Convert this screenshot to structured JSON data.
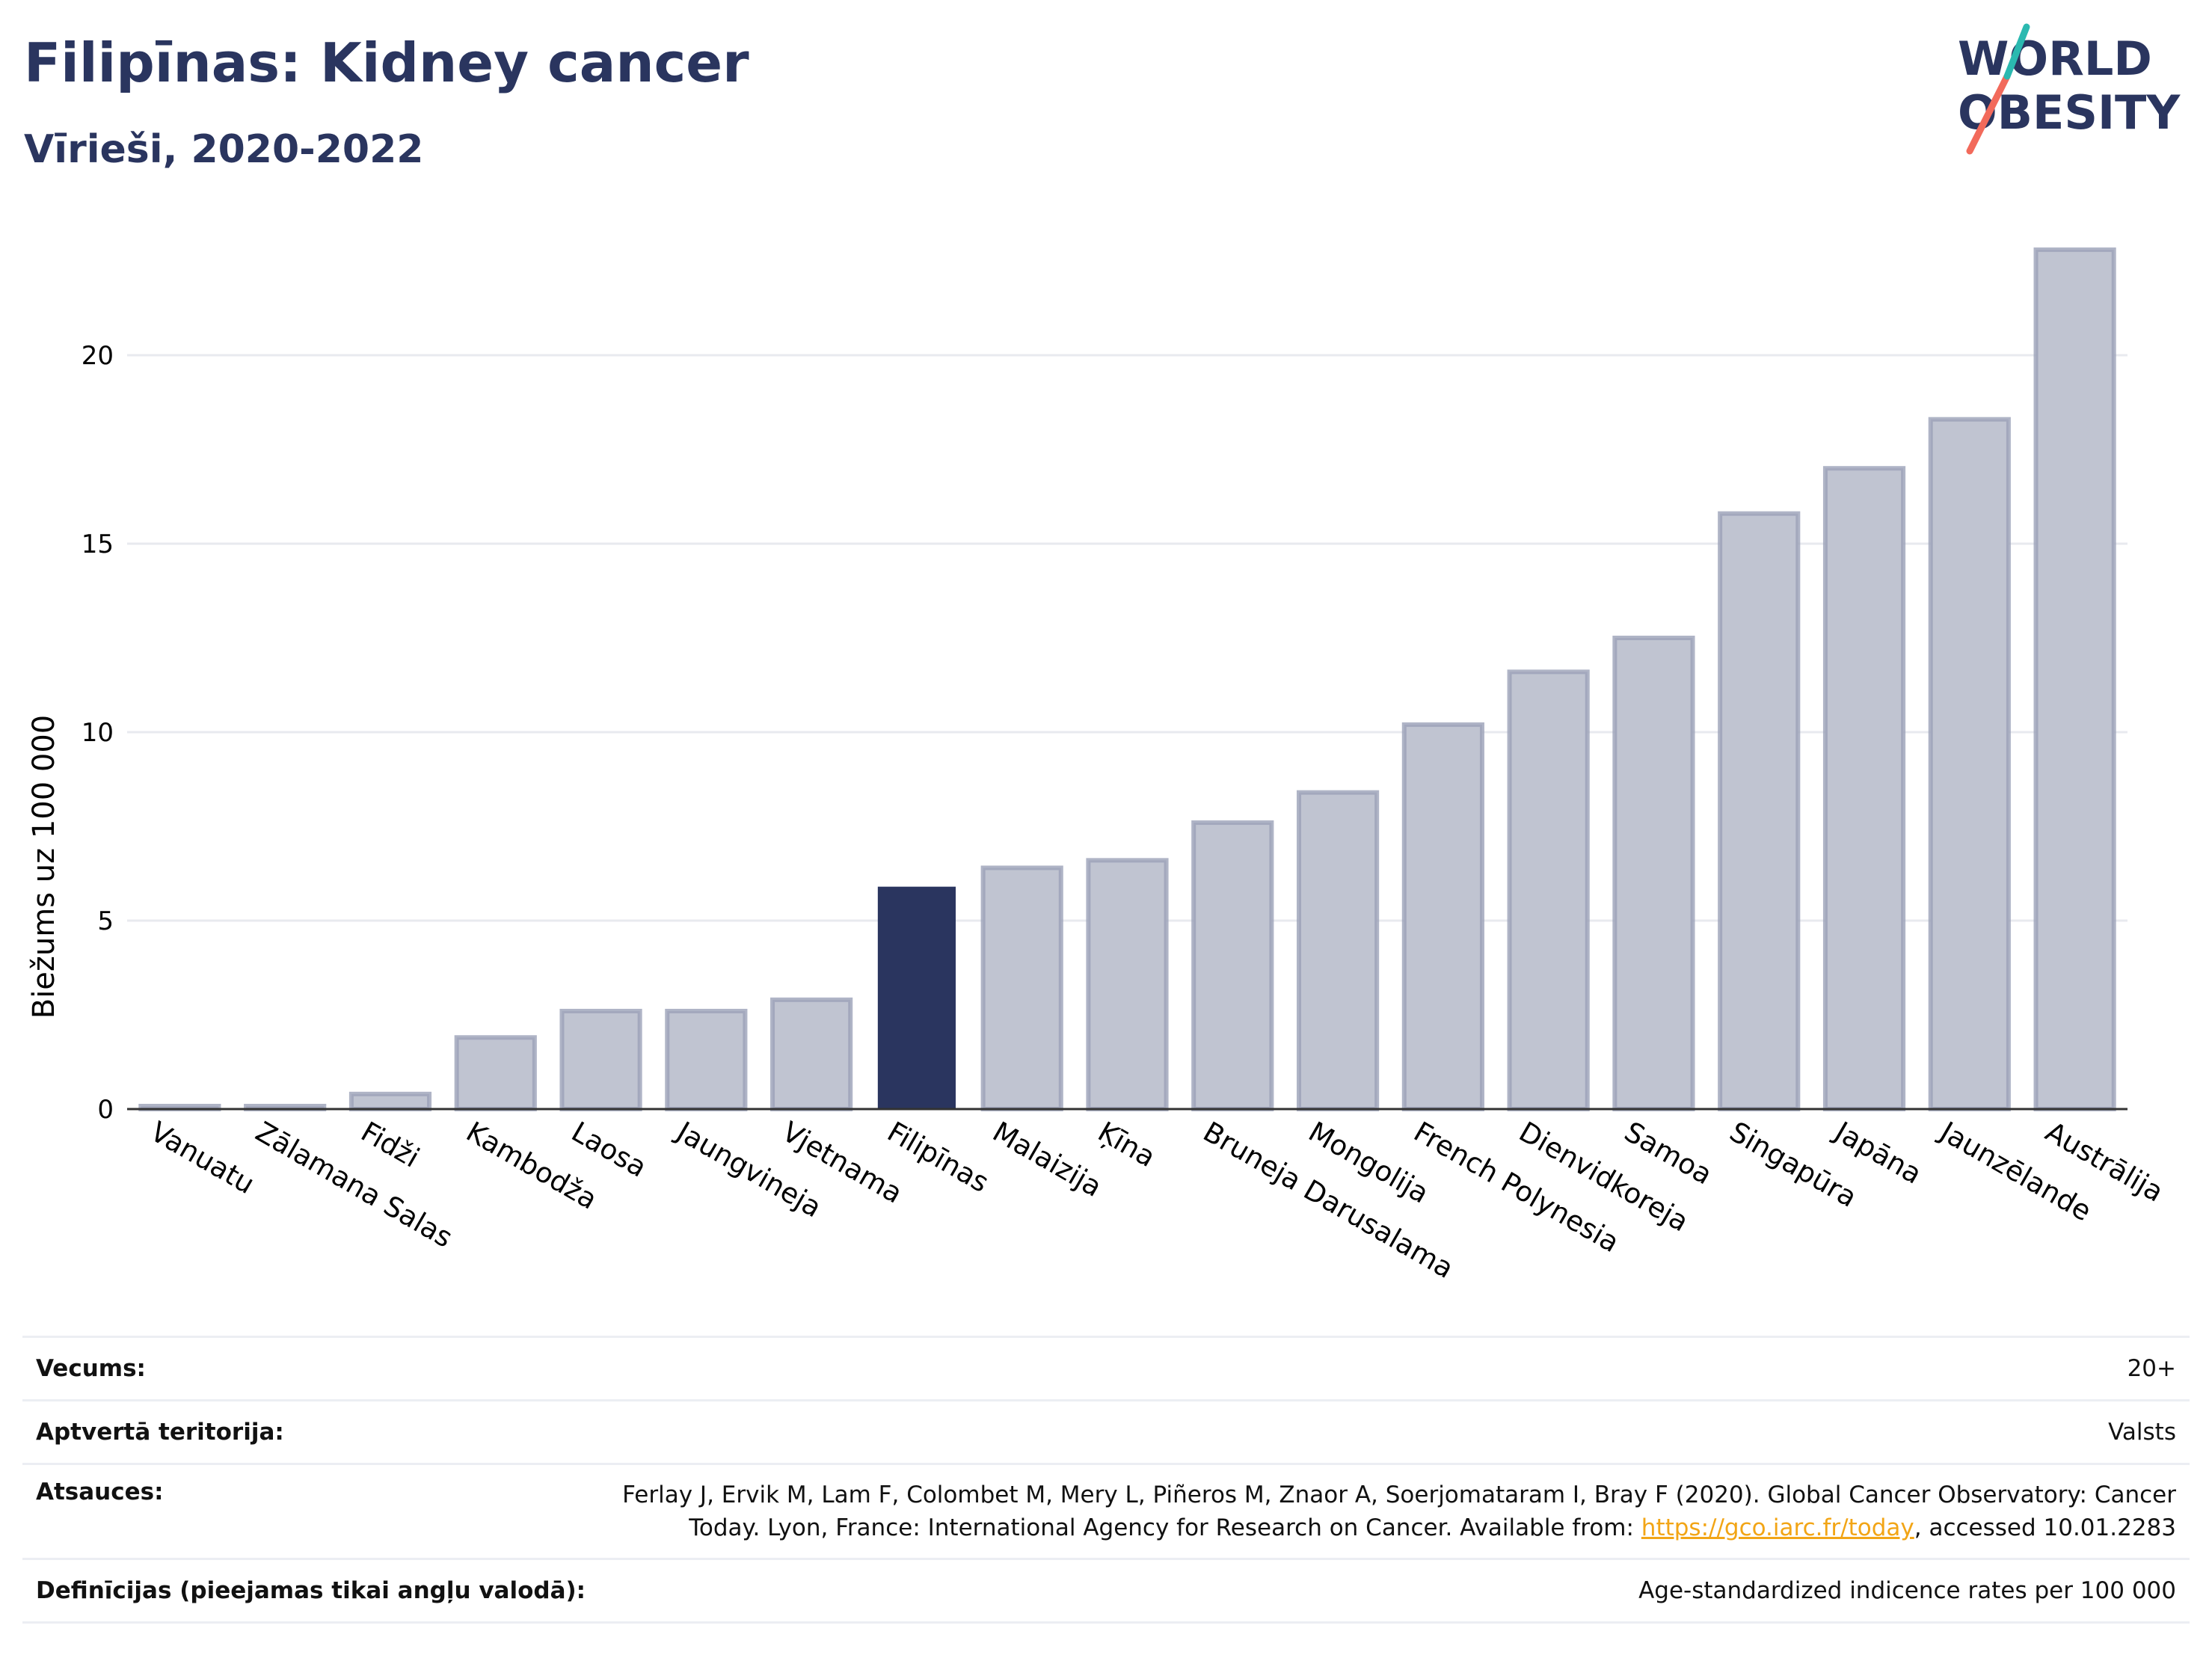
{
  "header": {
    "title": "Filipīnas: Kidney cancer",
    "subtitle": "Vīrieši, 2020-2022"
  },
  "logo": {
    "line1": "WORLD",
    "line2": "OBESITY",
    "accent_colors": [
      "#2bb9b0",
      "#f26a5b"
    ]
  },
  "chart_data": {
    "type": "bar",
    "ylabel": "Biežums uz 100 000",
    "ylim": [
      0,
      24
    ],
    "yticks": [
      0,
      5,
      10,
      15,
      20
    ],
    "grid": true,
    "highlight": "Filipīnas",
    "colors": {
      "highlight": "#2a355f",
      "default": "#c0c4d1",
      "default_border": "#9ba1b8"
    },
    "categories": [
      "Vanuatu",
      "Zālamana Salas",
      "Fidži",
      "Kambodža",
      "Laosa",
      "Jaungvineja",
      "Vjetnama",
      "Filipīnas",
      "Malaizija",
      "Ķīna",
      "Bruneja Darusalama",
      "Mongolija",
      "French Polynesia",
      "Dienvidkoreja",
      "Samoa",
      "Singapūra",
      "Japāna",
      "Jaunzēlande",
      "Austrālija"
    ],
    "values": [
      0.05,
      0.05,
      0.4,
      1.9,
      2.6,
      2.6,
      2.9,
      5.9,
      6.4,
      6.6,
      7.6,
      8.4,
      10.2,
      11.6,
      12.5,
      15.8,
      17.0,
      18.3,
      22.8
    ]
  },
  "meta": {
    "age": {
      "label": "Vecums:",
      "value": "20+"
    },
    "coverage": {
      "label": "Aptvertā teritorija:",
      "value": "Valsts"
    },
    "references": {
      "label": "Atsauces:",
      "text1": "Ferlay J, Ervik M, Lam F, Colombet M, Mery L, Piñeros M, Znaor A, Soerjomataram I, Bray F (2020). Global Cancer Observatory: Cancer",
      "text2": "Today. Lyon, France: International Agency for Research on Cancer. Available from: ",
      "link": "https://gco.iarc.fr/today",
      "text3": ", accessed 10.01.2283"
    },
    "definitions": {
      "label": "Definīcijas (pieejamas tikai angļu valodā):",
      "value": "Age-standardized indicence rates per 100 000"
    }
  }
}
